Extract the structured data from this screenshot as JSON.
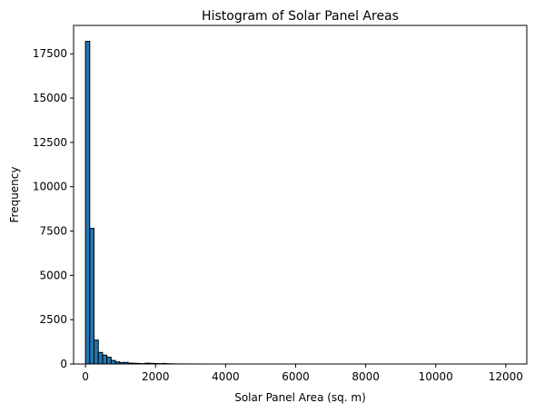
{
  "chart_data": {
    "type": "bar",
    "title": "Histogram of Solar Panel Areas",
    "xlabel": "Solar Panel Area (sq. m)",
    "ylabel": "Frequency",
    "xlim": [
      -340,
      12600
    ],
    "ylim": [
      0,
      19100
    ],
    "xticks": [
      0,
      2000,
      4000,
      6000,
      8000,
      10000,
      12000
    ],
    "yticks": [
      0,
      2500,
      5000,
      7500,
      10000,
      12500,
      15000,
      17500
    ],
    "bin_width": 122,
    "bins": [
      {
        "x0": 0,
        "x1": 122,
        "count": 18200
      },
      {
        "x0": 122,
        "x1": 244,
        "count": 7650
      },
      {
        "x0": 244,
        "x1": 366,
        "count": 1350
      },
      {
        "x0": 366,
        "x1": 488,
        "count": 650
      },
      {
        "x0": 488,
        "x1": 610,
        "count": 500
      },
      {
        "x0": 610,
        "x1": 732,
        "count": 380
      },
      {
        "x0": 732,
        "x1": 854,
        "count": 200
      },
      {
        "x0": 854,
        "x1": 976,
        "count": 120
      },
      {
        "x0": 976,
        "x1": 1098,
        "count": 80
      },
      {
        "x0": 1098,
        "x1": 1220,
        "count": 90
      },
      {
        "x0": 1220,
        "x1": 1342,
        "count": 50
      },
      {
        "x0": 1342,
        "x1": 1464,
        "count": 40
      },
      {
        "x0": 1464,
        "x1": 1586,
        "count": 30
      },
      {
        "x0": 1586,
        "x1": 1708,
        "count": 20
      },
      {
        "x0": 1708,
        "x1": 1830,
        "count": 45
      },
      {
        "x0": 1830,
        "x1": 1952,
        "count": 35
      },
      {
        "x0": 1952,
        "x1": 2074,
        "count": 25
      },
      {
        "x0": 2074,
        "x1": 2196,
        "count": 20
      },
      {
        "x0": 2196,
        "x1": 2318,
        "count": 30
      },
      {
        "x0": 2318,
        "x1": 2440,
        "count": 15
      },
      {
        "x0": 2440,
        "x1": 2562,
        "count": 8
      },
      {
        "x0": 2562,
        "x1": 2684,
        "count": 5
      },
      {
        "x0": 2684,
        "x1": 2806,
        "count": 4
      },
      {
        "x0": 2806,
        "x1": 2928,
        "count": 3
      },
      {
        "x0": 2928,
        "x1": 3050,
        "count": 2
      },
      {
        "x0": 3050,
        "x1": 3172,
        "count": 2
      },
      {
        "x0": 3172,
        "x1": 3294,
        "count": 1
      },
      {
        "x0": 3294,
        "x1": 3416,
        "count": 1
      }
    ],
    "colors": {
      "bar_fill": "#1f77b4",
      "bar_edge": "#000000"
    },
    "grid": false
  }
}
